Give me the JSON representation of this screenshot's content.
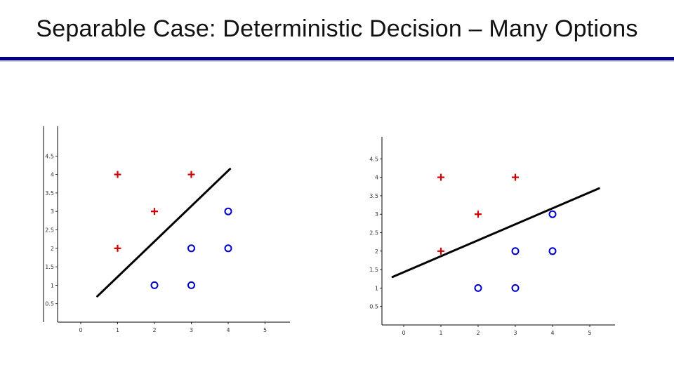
{
  "slide": {
    "title": "Separable Case: Deterministic Decision – Many Options"
  },
  "colors": {
    "title_rule": "#000080",
    "plus_marker": "#cc0000",
    "circle_marker": "#0000cc",
    "decision_line": "#000000"
  },
  "chart_data": [
    {
      "type": "scatter",
      "title": "",
      "xlabel": "",
      "ylabel": "",
      "xlim": [
        -1,
        5.7
      ],
      "ylim": [
        -0.1,
        4.8
      ],
      "x_ticks": [
        "0",
        "1",
        "2",
        "3",
        "4",
        "5"
      ],
      "y_ticks": [
        "0.5",
        "1",
        "1.5",
        "2",
        "2.5",
        "3",
        "3.5",
        "4",
        "4.5"
      ],
      "series": [
        {
          "marker": "plus",
          "color": "#cc0000",
          "points": [
            [
              1,
              4
            ],
            [
              3,
              4
            ],
            [
              2,
              3
            ],
            [
              1,
              2
            ]
          ]
        },
        {
          "marker": "circle",
          "color": "#0000cc",
          "points": [
            [
              4,
              3
            ],
            [
              3,
              2
            ],
            [
              4,
              2
            ],
            [
              2,
              1
            ],
            [
              3,
              1
            ]
          ]
        }
      ],
      "decision_line": [
        [
          0.45,
          0.7
        ],
        [
          4.05,
          4.15
        ]
      ]
    },
    {
      "type": "scatter",
      "title": "",
      "xlabel": "",
      "ylabel": "",
      "xlim": [
        -0.8,
        5.7
      ],
      "ylim": [
        0,
        5
      ],
      "x_ticks": [
        "0",
        "1",
        "2",
        "3",
        "4",
        "5"
      ],
      "y_ticks": [
        "0.5",
        "1",
        "1.5",
        "2",
        "2.5",
        "3",
        "3.5",
        "4",
        "4.5"
      ],
      "series": [
        {
          "marker": "plus",
          "color": "#cc0000",
          "points": [
            [
              1,
              4
            ],
            [
              3,
              4
            ],
            [
              2,
              3
            ],
            [
              1,
              2
            ]
          ]
        },
        {
          "marker": "circle",
          "color": "#0000cc",
          "points": [
            [
              4,
              3
            ],
            [
              3,
              2
            ],
            [
              4,
              2
            ],
            [
              2,
              1
            ],
            [
              3,
              1
            ]
          ]
        }
      ],
      "decision_line": [
        [
          -0.3,
          1.3
        ],
        [
          5.25,
          3.7
        ]
      ]
    }
  ]
}
